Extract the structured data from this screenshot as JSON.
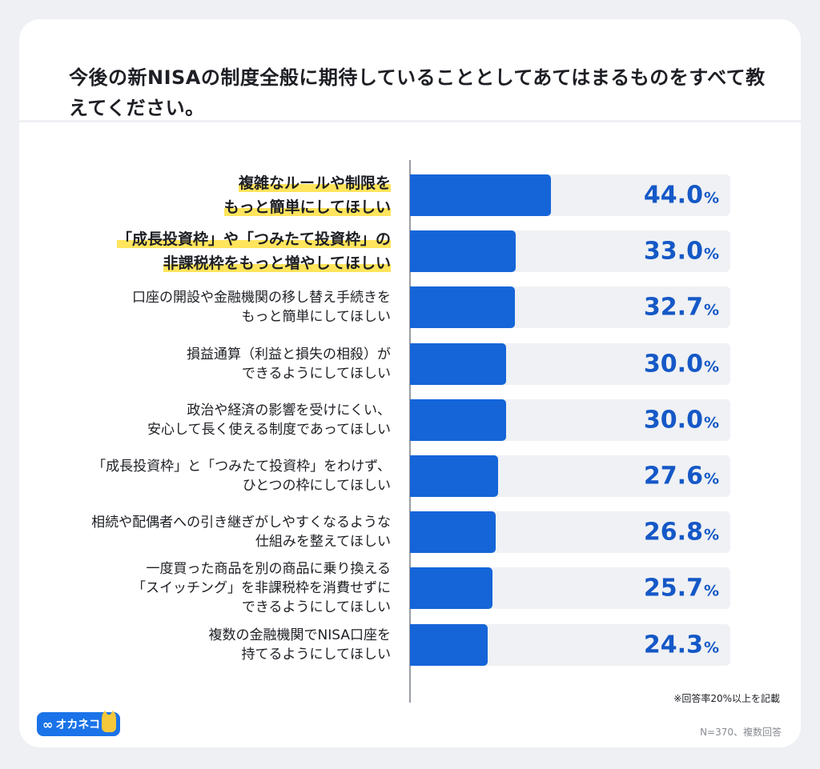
{
  "title": "今後の新NISAの制度全般に期待していることとしてあてはまるものをすべて教えてください。",
  "note": "※回答率20%以上を記載",
  "sample": "N=370、複数回答",
  "logo": {
    "text": "オカネコ",
    "icon": "infinity-icon"
  },
  "colors": {
    "bar": "#1565d8",
    "track": "#eff1f4",
    "value": "#1558c7",
    "highlight": "#ffe45c"
  },
  "chart_data": {
    "type": "bar",
    "orientation": "horizontal",
    "xlim": [
      0,
      100
    ],
    "unit": "%",
    "categories": [
      {
        "lines": [
          "複雑なルールや制限を",
          "もっと簡単にしてほしい"
        ],
        "highlight": true
      },
      {
        "lines": [
          "「成長投資枠」や「つみたて投資枠」の",
          "非課税枠をもっと増やしてほしい"
        ],
        "highlight": true
      },
      {
        "lines": [
          "口座の開設や金融機関の移し替え手続きを",
          "もっと簡単にしてほしい"
        ],
        "highlight": false
      },
      {
        "lines": [
          "損益通算（利益と損失の相殺）が",
          "できるようにしてほしい"
        ],
        "highlight": false
      },
      {
        "lines": [
          "政治や経済の影響を受けにくい、",
          "安心して長く使える制度であってほしい"
        ],
        "highlight": false
      },
      {
        "lines": [
          "「成長投資枠」と「つみたて投資枠」をわけず、",
          "ひとつの枠にしてほしい"
        ],
        "highlight": false
      },
      {
        "lines": [
          "相続や配偶者への引き継ぎがしやすくなるような",
          "仕組みを整えてほしい"
        ],
        "highlight": false
      },
      {
        "lines": [
          "一度買った商品を別の商品に乗り換える",
          "「スイッチング」を非課税枠を消費せずに",
          "できるようにしてほしい"
        ],
        "highlight": false
      },
      {
        "lines": [
          "複数の金融機関でNISA口座を",
          "持てるようにしてほしい"
        ],
        "highlight": false
      }
    ],
    "values": [
      44.0,
      33.0,
      32.7,
      30.0,
      30.0,
      27.6,
      26.8,
      25.7,
      24.3
    ],
    "value_labels": [
      "44.0",
      "33.0",
      "32.7",
      "30.0",
      "30.0",
      "27.6",
      "26.8",
      "25.7",
      "24.3"
    ]
  }
}
